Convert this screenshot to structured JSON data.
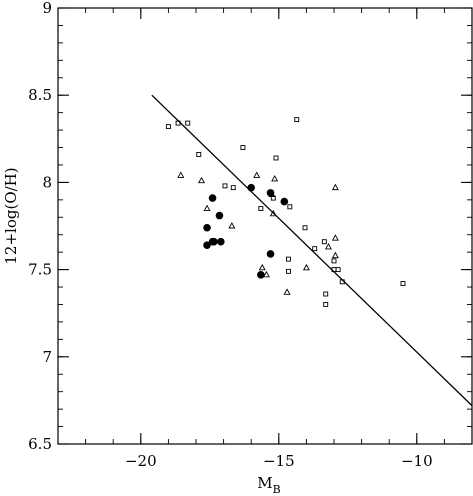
{
  "chart_data": {
    "type": "scatter",
    "title": "",
    "xlabel": "M",
    "xlabel_sub": "B",
    "ylabel": "12+log(O/H)",
    "xlim": [
      -23,
      -8
    ],
    "ylim": [
      6.5,
      9
    ],
    "x_ticks": [
      -20,
      -15,
      -10
    ],
    "x_tick_labels": [
      "−20",
      "−15",
      "−10"
    ],
    "y_ticks": [
      6.5,
      7,
      7.5,
      8,
      8.5,
      9
    ],
    "y_tick_labels": [
      "6.5",
      "7",
      "7.5",
      "8",
      "8.5",
      "9"
    ],
    "x_minor_step": 1,
    "y_minor_step": 0.1,
    "grid": false,
    "legend": "none",
    "series": [
      {
        "marker": "filled-circle",
        "x": [
          -17.6,
          -17.4,
          -17.4,
          -17.6,
          -17.35,
          -17.1,
          -17.15,
          -16.0,
          -15.3,
          -14.8,
          -15.3,
          -15.65
        ],
        "y": [
          7.74,
          7.91,
          7.66,
          7.64,
          7.66,
          7.66,
          7.81,
          7.97,
          7.94,
          7.89,
          7.59,
          7.47
        ]
      },
      {
        "marker": "open-square",
        "x": [
          -19.0,
          -18.65,
          -18.3,
          -17.9,
          -16.95,
          -16.65,
          -16.3,
          -15.65,
          -15.1,
          -14.6,
          -14.35,
          -14.05,
          -13.7,
          -13.35,
          -13.3,
          -13.0,
          -12.85,
          -12.7,
          -14.65,
          -14.65,
          -15.2,
          -10.5,
          -13.3,
          -13.0
        ],
        "y": [
          8.32,
          8.34,
          8.34,
          8.16,
          7.98,
          7.97,
          8.2,
          7.85,
          8.14,
          7.86,
          8.36,
          7.74,
          7.62,
          7.66,
          7.36,
          7.55,
          7.5,
          7.43,
          7.56,
          7.49,
          7.91,
          7.42,
          7.3,
          7.5
        ]
      },
      {
        "marker": "open-triangle",
        "x": [
          -18.55,
          -17.8,
          -17.6,
          -16.7,
          -15.8,
          -15.15,
          -15.2,
          -15.6,
          -15.45,
          -14.7,
          -14.0,
          -12.95,
          -12.95,
          -12.95,
          -13.2,
          -15.25
        ],
        "y": [
          8.04,
          8.01,
          7.85,
          7.75,
          8.04,
          8.02,
          7.82,
          7.51,
          7.47,
          7.37,
          7.51,
          7.97,
          7.68,
          7.58,
          7.63,
          7.93
        ]
      }
    ],
    "fit_line": {
      "x": [
        -19.6,
        -8.0
      ],
      "y": [
        8.5,
        6.72
      ]
    }
  }
}
